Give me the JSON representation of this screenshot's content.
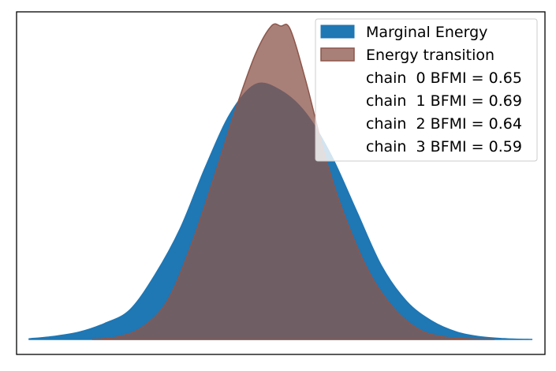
{
  "chart_data": {
    "type": "area",
    "title": "",
    "xlabel": "",
    "ylabel": "",
    "grid": false,
    "xticks": false,
    "yticks": false,
    "legend_position": "top-right",
    "xlim": [
      -4.2,
      4.2
    ],
    "ylim": [
      0,
      0.51
    ],
    "series": [
      {
        "name": "Marginal Energy",
        "color": "#1f77b4",
        "x": [
          -4.0,
          -3.6,
          -3.2,
          -2.8,
          -2.4,
          -2.0,
          -1.6,
          -1.2,
          -0.8,
          -0.4,
          0.0,
          0.4,
          0.8,
          1.2,
          1.6,
          2.0,
          2.4,
          2.8,
          3.2,
          3.6,
          4.0
        ],
        "values": [
          0.001,
          0.005,
          0.012,
          0.026,
          0.048,
          0.105,
          0.18,
          0.28,
          0.368,
          0.415,
          0.405,
          0.368,
          0.3,
          0.21,
          0.12,
          0.062,
          0.03,
          0.012,
          0.004,
          0.001,
          0.0
        ]
      },
      {
        "name": "Energy transition",
        "color": "#8c564b",
        "x": [
          -3.0,
          -2.6,
          -2.2,
          -1.8,
          -1.4,
          -1.0,
          -0.7,
          -0.4,
          -0.15,
          0.0,
          0.15,
          0.4,
          0.7,
          1.0,
          1.4,
          1.8,
          2.2,
          2.6,
          3.0,
          3.4
        ],
        "values": [
          0.0,
          0.004,
          0.02,
          0.063,
          0.16,
          0.283,
          0.38,
          0.465,
          0.51,
          0.51,
          0.505,
          0.42,
          0.3,
          0.205,
          0.11,
          0.05,
          0.016,
          0.004,
          0.001,
          0.0
        ]
      }
    ],
    "annotations": [
      "chain  0 BFMI = 0.65",
      "chain  1 BFMI = 0.69",
      "chain  2 BFMI = 0.64",
      "chain  3 BFMI = 0.59"
    ]
  }
}
